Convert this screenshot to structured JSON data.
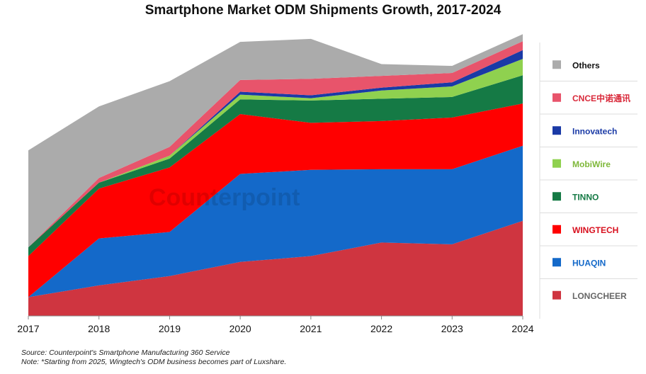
{
  "chart_data": {
    "type": "area",
    "title": "Smartphone Market ODM Shipments Growth, 2017-2024",
    "x": [
      "2017",
      "2018",
      "2019",
      "2020",
      "2021",
      "2022",
      "2023",
      "2024"
    ],
    "stacked": true,
    "series": [
      {
        "name": "LONGCHEER",
        "color": "#cf3540",
        "values": [
          32,
          52,
          68,
          92,
          102,
          125,
          122,
          162
        ]
      },
      {
        "name": "HUAQIN",
        "color": "#1469c9",
        "values": [
          0,
          80,
          75,
          150,
          147,
          125,
          128,
          128
        ]
      },
      {
        "name": "WINGTECH",
        "color": "#ff0000",
        "values": [
          70,
          85,
          110,
          102,
          80,
          82,
          88,
          72
        ]
      },
      {
        "name": "TINNO",
        "color": "#157a45",
        "values": [
          15,
          10,
          15,
          25,
          38,
          38,
          35,
          48
        ]
      },
      {
        "name": "MobiWire",
        "color": "#8fd14f",
        "values": [
          0,
          0,
          5,
          8,
          4,
          14,
          18,
          28
        ]
      },
      {
        "name": "Innovatech",
        "color": "#1a3aa6",
        "values": [
          0,
          0,
          0,
          5,
          5,
          5,
          7,
          15
        ]
      },
      {
        "name": "CNCE",
        "color": "#e8546b",
        "values": [
          0,
          8,
          15,
          20,
          28,
          20,
          16,
          15
        ]
      },
      {
        "name": "Others",
        "color": "#ababab",
        "values": [
          165,
          122,
          112,
          65,
          68,
          20,
          12,
          12
        ]
      }
    ],
    "legend_position": "right",
    "grid": false,
    "ylim": [
      0,
      490
    ]
  },
  "legend_labels": {
    "others": "Others",
    "cnce": "CNCE中诺通讯",
    "innovatech": "Innovatech",
    "mobiwire": "MobiWire",
    "tinno": "TINNO",
    "wingtech": "WINGTECH",
    "huaqin": "HUAQIN",
    "longcheer": "LONGCHEER"
  },
  "watermark": "Counterpoint",
  "source_note": "Source: Counterpoint's Smartphone Manufacturing 360 Service",
  "footnote": "Note: *Starting from 2025, Wingtech's ODM business becomes part of Luxshare."
}
